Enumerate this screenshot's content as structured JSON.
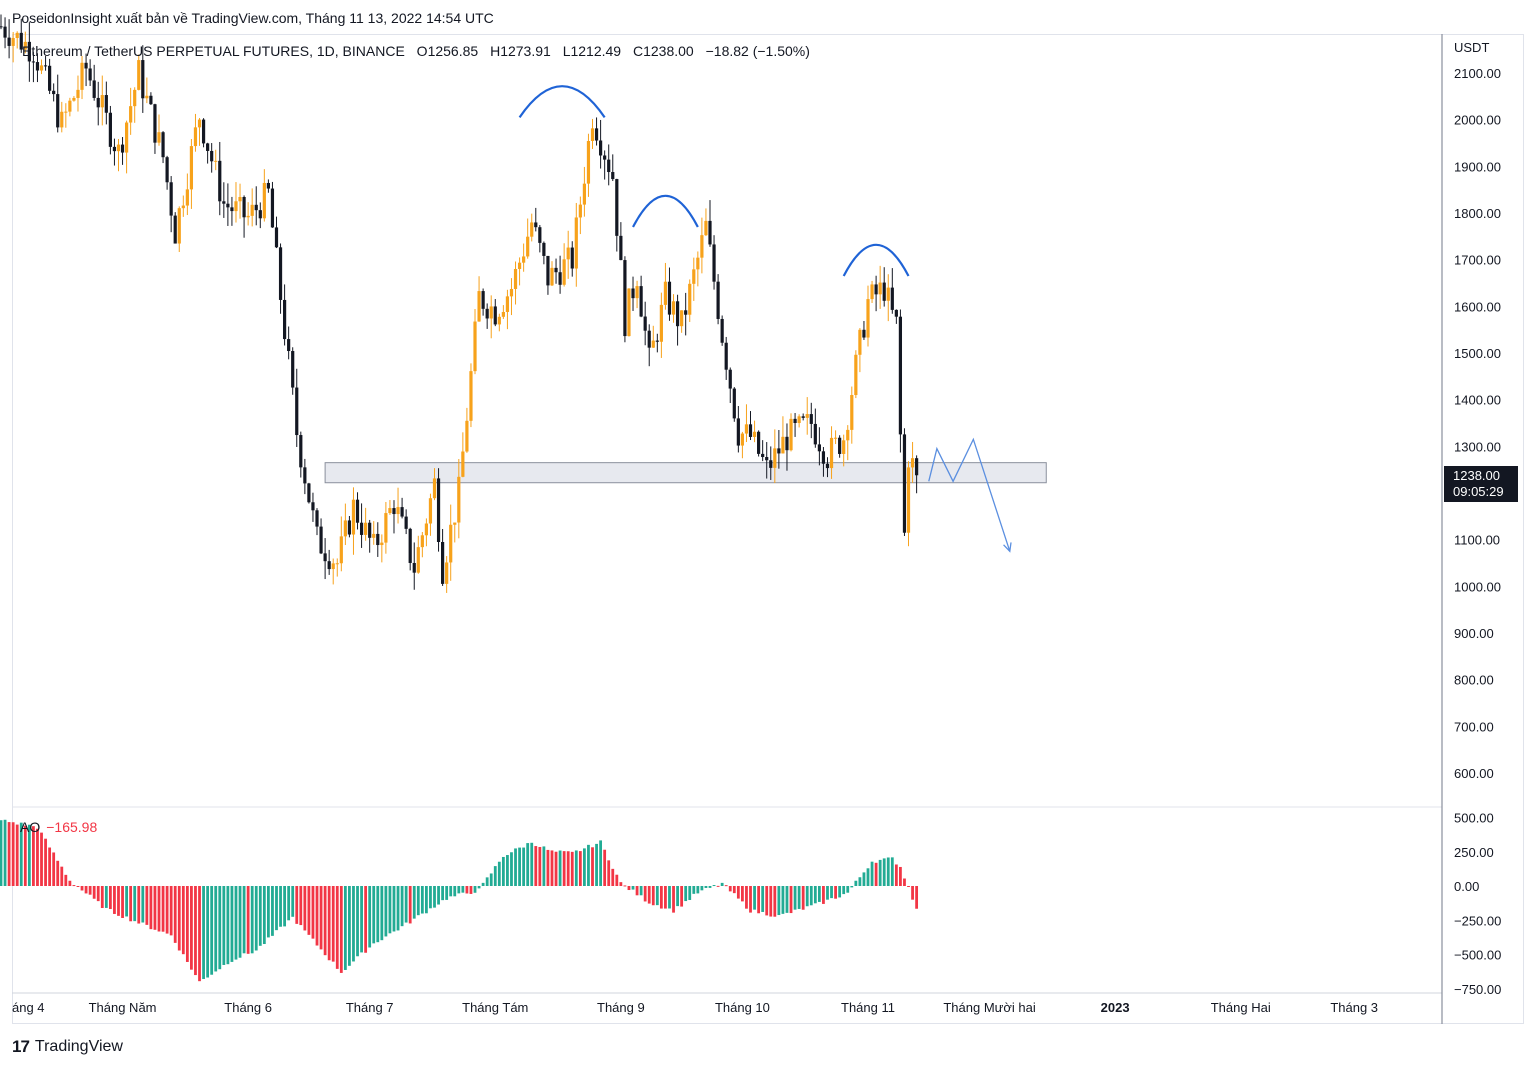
{
  "publisher_line": "PoseidonInsight xuất bản về TradingView.com, Tháng 11 13, 2022 14:54 UTC",
  "legend": {
    "symbol": "Ethereum / TetherUS PERPETUAL FUTURES, 1D, BINANCE",
    "open_label": "O",
    "open": "1256.85",
    "high_label": "H",
    "high": "1273.91",
    "low_label": "L",
    "low": "1212.49",
    "close_label": "C",
    "close": "1238.00",
    "change": "−18.82 (−1.50%)"
  },
  "price_tag": {
    "price": "1238.00",
    "countdown": "09:05:29"
  },
  "ao_legend": {
    "name": "AO",
    "value": "−165.98"
  },
  "logo_text": "TradingView",
  "colors": {
    "up": "#f7a21b",
    "down": "#131722",
    "ao_up": "#22ab94",
    "ao_down": "#f23645",
    "annotation": "#1f63d6",
    "projection": "#5b8fe0",
    "zone_fill": "#e7e9ef",
    "zone_border": "#8a8f9c"
  },
  "chart_data": [
    {
      "type": "candlestick",
      "title": "Ethereum / TetherUS PERPETUAL FUTURES, 1D, BINANCE",
      "y_unit": "USDT",
      "ylim": [
        520,
        2200
      ],
      "y_ticks": [
        600,
        700,
        800,
        900,
        1000,
        1100,
        1200,
        1300,
        1400,
        1500,
        1600,
        1700,
        1800,
        1900,
        2000,
        2100
      ],
      "y_tick_labels": [
        "600.00",
        "700.00",
        "800.00",
        "900.00",
        "1000.00",
        "1100.00",
        "1200.00",
        "1300.00",
        "1400.00",
        "1500.00",
        "1600.00",
        "1700.00",
        "1800.00",
        "1900.00",
        "2000.00",
        "2100.00"
      ],
      "x_tick_labels": [
        "áng 4",
        "Tháng Năm",
        "Tháng 6",
        "Tháng 7",
        "Tháng Tám",
        "Tháng 9",
        "Tháng 10",
        "Tháng 11",
        "Tháng Mười hai",
        "2023",
        "Tháng Hai",
        "Tháng 3"
      ],
      "x_tick_dates": [
        "2022-04-01",
        "2022-05-01",
        "2022-06-01",
        "2022-07-01",
        "2022-08-01",
        "2022-09-01",
        "2022-10-01",
        "2022-11-01",
        "2022-12-01",
        "2023-01-01",
        "2023-02-01",
        "2023-03-01"
      ],
      "last_close": 1238.0,
      "support_zone": {
        "from": "2022-06-20",
        "to": "2022-12-15",
        "low": 1222,
        "high": 1265
      },
      "tops": [
        {
          "from": "2022-08-07",
          "to": "2022-08-28",
          "level": 2075
        },
        {
          "from": "2022-09-04",
          "to": "2022-09-20",
          "level": 1840
        },
        {
          "from": "2022-10-26",
          "to": "2022-11-11",
          "level": 1735
        }
      ],
      "projection": [
        {
          "date": "2022-11-16",
          "price": 1225
        },
        {
          "date": "2022-11-18",
          "price": 1295
        },
        {
          "date": "2022-11-22",
          "price": 1225
        },
        {
          "date": "2022-11-27",
          "price": 1315
        },
        {
          "date": "2022-12-06",
          "price": 1075
        }
      ],
      "anchors": [
        [
          "2022-04-01",
          2200
        ],
        [
          "2022-04-09",
          2150
        ],
        [
          "2022-04-16",
          1990
        ],
        [
          "2022-04-22",
          2110
        ],
        [
          "2022-04-30",
          1930
        ],
        [
          "2022-05-05",
          2100
        ],
        [
          "2022-05-11",
          1920
        ],
        [
          "2022-05-14",
          1760
        ],
        [
          "2022-05-20",
          2010
        ],
        [
          "2022-05-26",
          1820
        ],
        [
          "2022-06-01",
          1790
        ],
        [
          "2022-06-06",
          1840
        ],
        [
          "2022-06-13",
          1330
        ],
        [
          "2022-06-18",
          1100
        ],
        [
          "2022-06-23",
          1050
        ],
        [
          "2022-06-27",
          1170
        ],
        [
          "2022-07-02",
          1080
        ],
        [
          "2022-07-07",
          1180
        ],
        [
          "2022-07-12",
          1040
        ],
        [
          "2022-07-17",
          1220
        ],
        [
          "2022-07-19",
          1040
        ],
        [
          "2022-07-23",
          1200
        ],
        [
          "2022-07-28",
          1620
        ],
        [
          "2022-08-01",
          1590
        ],
        [
          "2022-08-05",
          1640
        ],
        [
          "2022-08-10",
          1780
        ],
        [
          "2022-08-14",
          1660
        ],
        [
          "2022-08-20",
          1700
        ],
        [
          "2022-08-25",
          2010
        ],
        [
          "2022-08-30",
          1880
        ],
        [
          "2022-09-02",
          1570
        ],
        [
          "2022-09-05",
          1670
        ],
        [
          "2022-09-08",
          1480
        ],
        [
          "2022-09-12",
          1620
        ],
        [
          "2022-09-16",
          1560
        ],
        [
          "2022-09-22",
          1770
        ],
        [
          "2022-09-26",
          1540
        ],
        [
          "2022-09-30",
          1330
        ],
        [
          "2022-10-03",
          1320
        ],
        [
          "2022-10-07",
          1250
        ],
        [
          "2022-10-12",
          1320
        ],
        [
          "2022-10-18",
          1350
        ],
        [
          "2022-10-22",
          1280
        ],
        [
          "2022-10-26",
          1320
        ],
        [
          "2022-10-29",
          1470
        ],
        [
          "2022-11-01",
          1610
        ],
        [
          "2022-11-05",
          1640
        ],
        [
          "2022-11-07",
          1580
        ],
        [
          "2022-11-08",
          1560
        ],
        [
          "2022-11-09",
          1320
        ],
        [
          "2022-11-10",
          1110
        ],
        [
          "2022-11-11",
          1280
        ],
        [
          "2022-11-12",
          1260
        ],
        [
          "2022-11-13",
          1238
        ]
      ]
    },
    {
      "type": "bar",
      "title": "AO",
      "last_value": -165.98,
      "ylim": [
        -760,
        560
      ],
      "y_ticks": [
        -750,
        -500,
        -250,
        0,
        250,
        500
      ],
      "y_tick_labels": [
        "−750.00",
        "−500.00",
        "−250.00",
        "0.00",
        "250.00",
        "500.00"
      ],
      "anchors": [
        [
          "2022-04-01",
          480
        ],
        [
          "2022-04-10",
          430
        ],
        [
          "2022-04-18",
          40
        ],
        [
          "2022-04-27",
          -170
        ],
        [
          "2022-05-06",
          -280
        ],
        [
          "2022-05-13",
          -360
        ],
        [
          "2022-05-20",
          -700
        ],
        [
          "2022-05-28",
          -540
        ],
        [
          "2022-06-03",
          -470
        ],
        [
          "2022-06-12",
          -230
        ],
        [
          "2022-06-24",
          -630
        ],
        [
          "2022-07-02",
          -420
        ],
        [
          "2022-07-10",
          -280
        ],
        [
          "2022-07-20",
          -90
        ],
        [
          "2022-07-28",
          -30
        ],
        [
          "2022-08-03",
          220
        ],
        [
          "2022-08-10",
          320
        ],
        [
          "2022-08-15",
          250
        ],
        [
          "2022-08-20",
          240
        ],
        [
          "2022-08-27",
          320
        ],
        [
          "2022-09-01",
          20
        ],
        [
          "2022-09-08",
          -120
        ],
        [
          "2022-09-14",
          -180
        ],
        [
          "2022-09-20",
          -50
        ],
        [
          "2022-09-26",
          20
        ],
        [
          "2022-10-03",
          -180
        ],
        [
          "2022-10-10",
          -220
        ],
        [
          "2022-10-20",
          -130
        ],
        [
          "2022-10-27",
          -50
        ],
        [
          "2022-11-02",
          180
        ],
        [
          "2022-11-07",
          200
        ],
        [
          "2022-11-09",
          140
        ],
        [
          "2022-11-11",
          -10
        ],
        [
          "2022-11-13",
          -166
        ]
      ]
    }
  ]
}
